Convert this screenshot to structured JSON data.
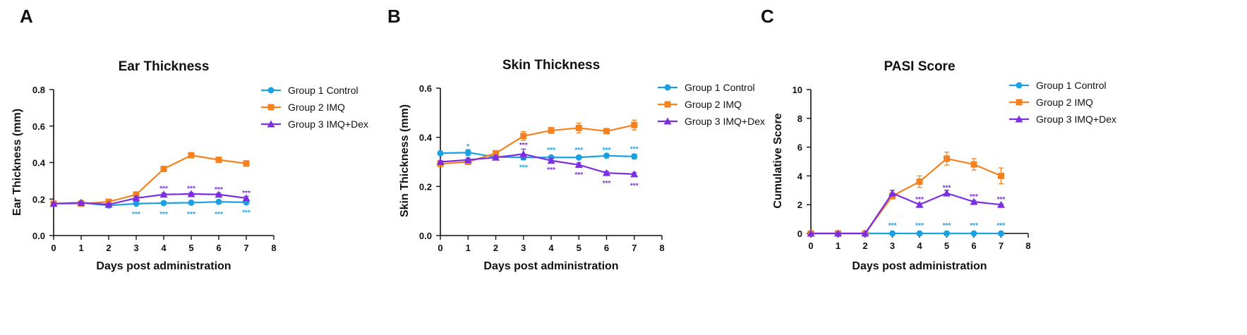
{
  "colors": {
    "control": "#1ba1e2",
    "imq": "#f5821f",
    "dex": "#7b2fe0",
    "axis": "#111111"
  },
  "chart_data": [
    {
      "panel": "A",
      "type": "line",
      "title": "Ear Thickness",
      "xlabel": "Days post administration",
      "ylabel": "Ear Thickness (mm)",
      "xlim": [
        0,
        8
      ],
      "ylim": [
        0,
        0.8
      ],
      "xticks": [
        0,
        1,
        2,
        3,
        4,
        5,
        6,
        7,
        8
      ],
      "yticks": [
        "0.0",
        "0.2",
        "0.4",
        "0.6",
        "0.8"
      ],
      "x": [
        0,
        1,
        2,
        3,
        4,
        5,
        6,
        7
      ],
      "legend_position": "top-right",
      "series": [
        {
          "name": "Group 1 Control",
          "marker": "circle",
          "color_key": "control",
          "values": [
            0.175,
            0.18,
            0.165,
            0.175,
            0.178,
            0.18,
            0.185,
            0.182
          ],
          "errors": [
            0.005,
            0.005,
            0.005,
            0.005,
            0.005,
            0.005,
            0.005,
            0.005
          ]
        },
        {
          "name": "Group 2 IMQ",
          "marker": "square",
          "color_key": "imq",
          "values": [
            0.175,
            0.175,
            0.185,
            0.225,
            0.365,
            0.44,
            0.415,
            0.395
          ],
          "errors": [
            0.005,
            0.005,
            0.008,
            0.01,
            0.012,
            0.01,
            0.012,
            0.015
          ]
        },
        {
          "name": "Group 3 IMQ+Dex",
          "marker": "triangle",
          "color_key": "dex",
          "values": [
            0.175,
            0.18,
            0.17,
            0.205,
            0.225,
            0.228,
            0.225,
            0.205
          ],
          "errors": [
            0.005,
            0.005,
            0.005,
            0.01,
            0.008,
            0.008,
            0.008,
            0.01
          ]
        }
      ],
      "annotations": [
        {
          "text": "***",
          "x": 3,
          "y": 0.12,
          "color_key": "control"
        },
        {
          "text": "***",
          "x": 4,
          "y": 0.12,
          "color_key": "control"
        },
        {
          "text": "***",
          "x": 5,
          "y": 0.12,
          "color_key": "control"
        },
        {
          "text": "***",
          "x": 6,
          "y": 0.12,
          "color_key": "control"
        },
        {
          "text": "***",
          "x": 7,
          "y": 0.13,
          "color_key": "control"
        },
        {
          "text": "***",
          "x": 4,
          "y": 0.26,
          "color_key": "dex"
        },
        {
          "text": "***",
          "x": 5,
          "y": 0.26,
          "color_key": "dex"
        },
        {
          "text": "***",
          "x": 6,
          "y": 0.255,
          "color_key": "dex"
        },
        {
          "text": "***",
          "x": 7,
          "y": 0.235,
          "color_key": "dex"
        }
      ]
    },
    {
      "panel": "B",
      "type": "line",
      "title": "Skin Thickness",
      "xlabel": "Days post administration",
      "ylabel": "Skin Thickness (mm)",
      "xlim": [
        0,
        8
      ],
      "ylim": [
        0,
        0.6
      ],
      "xticks": [
        0,
        1,
        2,
        3,
        4,
        5,
        6,
        7,
        8
      ],
      "yticks": [
        "0.0",
        "0.2",
        "0.4",
        "0.6"
      ],
      "x": [
        0,
        1,
        2,
        3,
        4,
        5,
        6,
        7
      ],
      "legend_position": "top-right",
      "series": [
        {
          "name": "Group 1 Control",
          "marker": "circle",
          "color_key": "control",
          "values": [
            0.335,
            0.338,
            0.32,
            0.318,
            0.318,
            0.318,
            0.325,
            0.322
          ],
          "errors": [
            0.005,
            0.012,
            0.008,
            0.01,
            0.006,
            0.006,
            0.006,
            0.01
          ]
        },
        {
          "name": "Group 2 IMQ",
          "marker": "square",
          "color_key": "imq",
          "values": [
            0.292,
            0.3,
            0.335,
            0.405,
            0.428,
            0.438,
            0.425,
            0.45
          ],
          "errors": [
            0.005,
            0.008,
            0.01,
            0.018,
            0.012,
            0.02,
            0.01,
            0.02
          ]
        },
        {
          "name": "Group 3 IMQ+Dex",
          "marker": "triangle",
          "color_key": "dex",
          "values": [
            0.3,
            0.308,
            0.318,
            0.332,
            0.305,
            0.288,
            0.255,
            0.25
          ],
          "errors": [
            0.005,
            0.008,
            0.008,
            0.02,
            0.01,
            0.008,
            0.006,
            0.006
          ]
        }
      ],
      "annotations": [
        {
          "text": "*",
          "x": 1,
          "y": 0.365,
          "color_key": "control"
        },
        {
          "text": "***",
          "x": 3,
          "y": 0.28,
          "color_key": "control"
        },
        {
          "text": "***",
          "x": 4,
          "y": 0.35,
          "color_key": "control"
        },
        {
          "text": "***",
          "x": 5,
          "y": 0.35,
          "color_key": "control"
        },
        {
          "text": "***",
          "x": 6,
          "y": 0.35,
          "color_key": "control"
        },
        {
          "text": "***",
          "x": 7,
          "y": 0.355,
          "color_key": "control"
        },
        {
          "text": "***",
          "x": 3,
          "y": 0.37,
          "color_key": "dex"
        },
        {
          "text": "***",
          "x": 4,
          "y": 0.27,
          "color_key": "dex"
        },
        {
          "text": "***",
          "x": 5,
          "y": 0.25,
          "color_key": "dex"
        },
        {
          "text": "***",
          "x": 6,
          "y": 0.215,
          "color_key": "dex"
        },
        {
          "text": "***",
          "x": 7,
          "y": 0.205,
          "color_key": "dex"
        }
      ]
    },
    {
      "panel": "C",
      "type": "line",
      "title": "PASI Score",
      "xlabel": "Days post administration",
      "ylabel": "Cumulative Score",
      "xlim": [
        0,
        8
      ],
      "ylim": [
        0,
        10
      ],
      "xticks": [
        0,
        1,
        2,
        3,
        4,
        5,
        6,
        7,
        8
      ],
      "yticks": [
        "0",
        "2",
        "4",
        "6",
        "8",
        "10"
      ],
      "x": [
        0,
        1,
        2,
        3,
        4,
        5,
        6,
        7
      ],
      "legend_position": "top-right",
      "series": [
        {
          "name": "Group 1 Control",
          "marker": "circle",
          "color_key": "control",
          "values": [
            0,
            0,
            0,
            0,
            0,
            0,
            0,
            0
          ],
          "errors": [
            0,
            0,
            0,
            0,
            0,
            0,
            0,
            0
          ]
        },
        {
          "name": "Group 2 IMQ",
          "marker": "square",
          "color_key": "imq",
          "values": [
            0,
            0,
            0,
            2.6,
            3.6,
            5.2,
            4.8,
            4.0
          ],
          "errors": [
            0,
            0,
            0,
            0.2,
            0.4,
            0.45,
            0.4,
            0.55
          ]
        },
        {
          "name": "Group 3 IMQ+Dex",
          "marker": "triangle",
          "color_key": "dex",
          "values": [
            0,
            0,
            0,
            2.8,
            2.0,
            2.8,
            2.2,
            2.0
          ],
          "errors": [
            0,
            0,
            0,
            0.2,
            0.1,
            0.2,
            0.1,
            0.05
          ]
        }
      ],
      "annotations": [
        {
          "text": "***",
          "x": 3,
          "y": 0.6,
          "color_key": "control"
        },
        {
          "text": "***",
          "x": 4,
          "y": 0.6,
          "color_key": "control"
        },
        {
          "text": "***",
          "x": 5,
          "y": 0.6,
          "color_key": "control"
        },
        {
          "text": "***",
          "x": 6,
          "y": 0.6,
          "color_key": "control"
        },
        {
          "text": "***",
          "x": 7,
          "y": 0.6,
          "color_key": "control"
        },
        {
          "text": "***",
          "x": 4,
          "y": 2.4,
          "color_key": "dex"
        },
        {
          "text": "***",
          "x": 5,
          "y": 3.2,
          "color_key": "dex"
        },
        {
          "text": "***",
          "x": 6,
          "y": 2.6,
          "color_key": "dex"
        },
        {
          "text": "***",
          "x": 7,
          "y": 2.4,
          "color_key": "dex"
        }
      ]
    }
  ]
}
